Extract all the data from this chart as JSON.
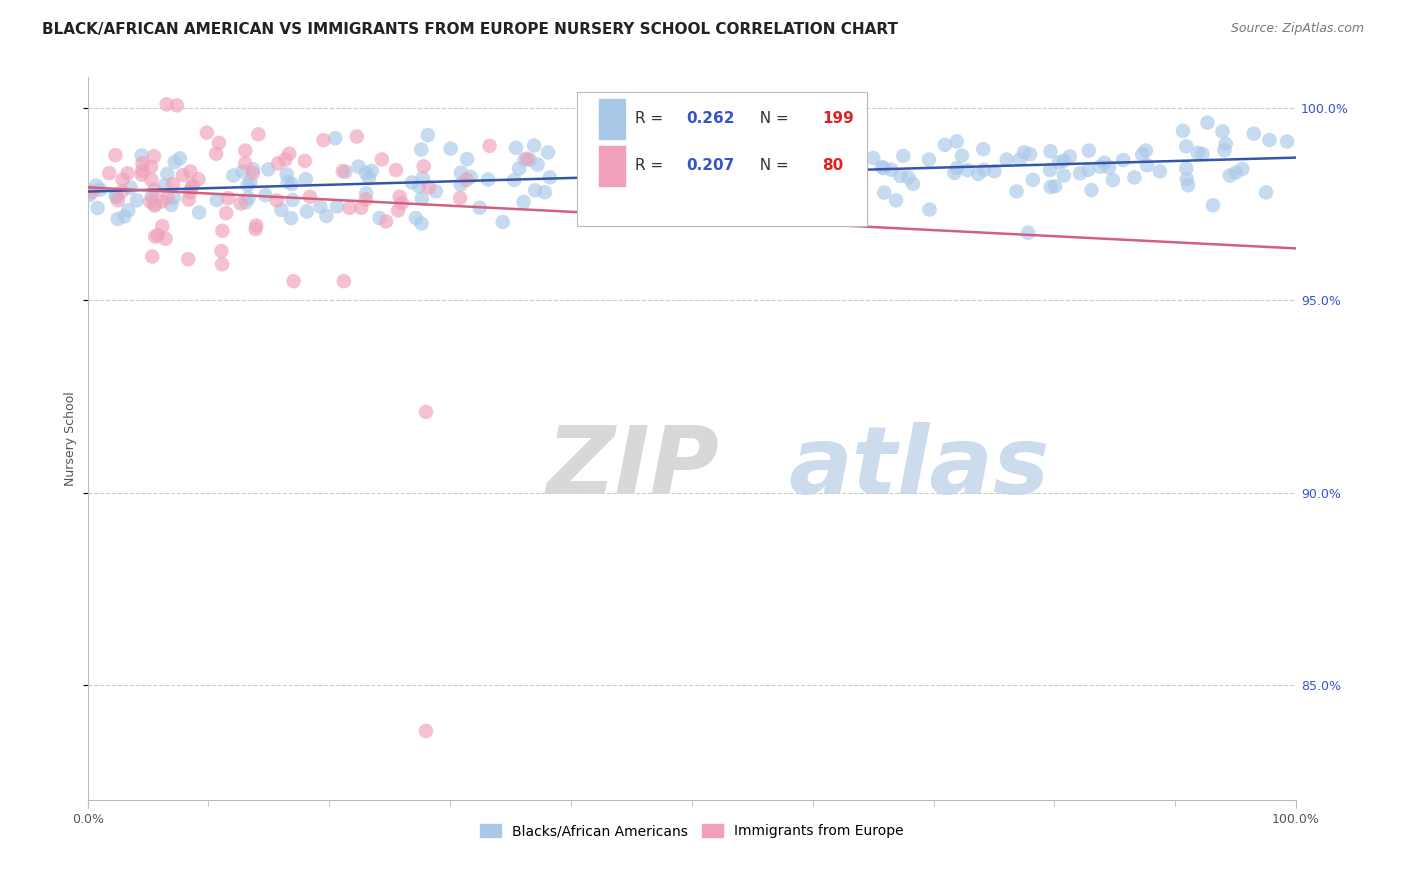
{
  "title": "BLACK/AFRICAN AMERICAN VS IMMIGRANTS FROM EUROPE NURSERY SCHOOL CORRELATION CHART",
  "source": "Source: ZipAtlas.com",
  "ylabel": "Nursery School",
  "watermark_zip": "ZIP",
  "watermark_atlas": "atlas",
  "blue_R": 0.262,
  "blue_N": 199,
  "pink_R": 0.207,
  "pink_N": 80,
  "blue_color": "#a8c8e8",
  "pink_color": "#f0a0b8",
  "blue_line_color": "#3355aa",
  "pink_line_color": "#d06080",
  "value_color": "#3355cc",
  "N_color": "#dd2222",
  "xtick_labels": [
    "0.0%",
    "100.0%"
  ],
  "ytick_vals": [
    0.85,
    0.9,
    0.95,
    1.0
  ],
  "ytick_labels": [
    "85.0%",
    "90.0%",
    "95.0%",
    "100.0%"
  ],
  "xmin": 0.0,
  "xmax": 1.0,
  "ymin": 0.82,
  "ymax": 1.008,
  "grid_color": "#cccccc",
  "background_color": "#ffffff",
  "title_fontsize": 11,
  "source_fontsize": 9,
  "axis_label_fontsize": 9,
  "tick_label_fontsize": 9,
  "legend_fontsize": 11
}
